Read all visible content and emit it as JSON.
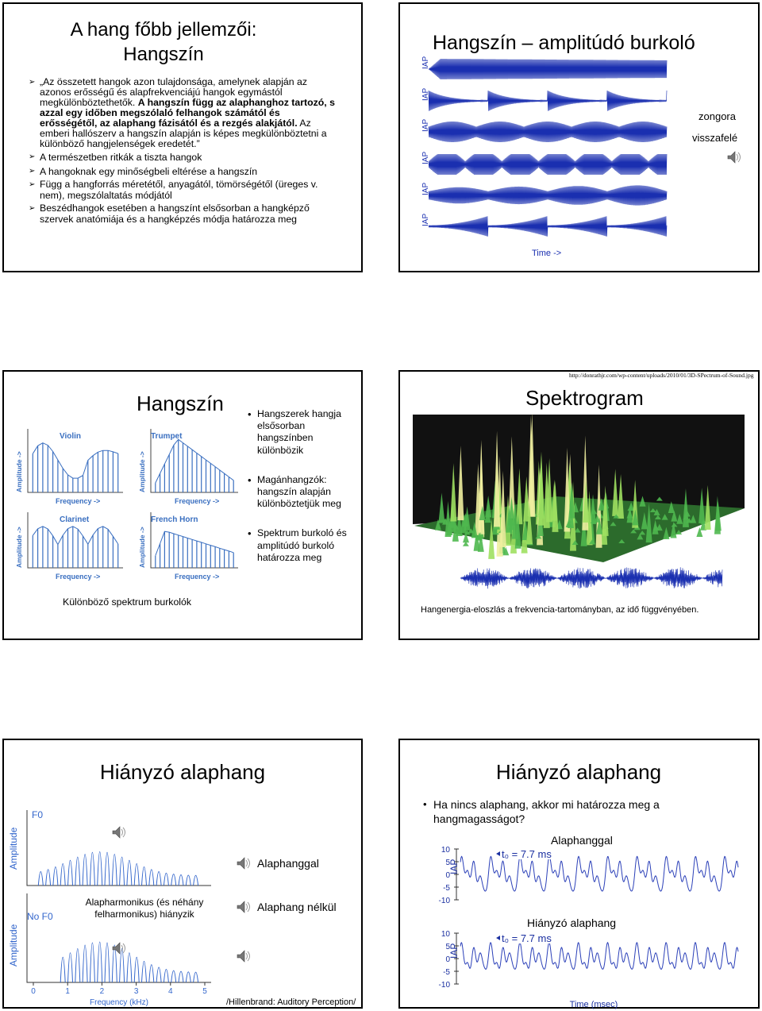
{
  "slides": [
    {
      "title": [
        "A hang főbb jellemzői:",
        "Hangszín"
      ],
      "bullets": [
        {
          "lead": "„Az összetett hangok azon tulajdonsága, amelynek alapján az azonos erősségű és alapfrekvenciájú hangok egymástól megkülönböztethetők. ",
          "bold": "A hangszín függ az alaphanghoz tartozó, s azzal egy időben megszólaló felhangok számától és erősségétől, az alaphang fázisától és a rezgés alakjától.",
          "tail": " Az emberi hallószerv a hangszín alapján is képes megkülönböztetni a különböző hangjelenségek eredetét.”"
        },
        "A természetben ritkák a tiszta hangok",
        "A hangoknak egy minőségbeli eltérése a hangszín",
        "Függ a hangforrás méretétől, anyagától, tömörségétől (üreges v. nem), megszólaltatás módjától",
        "Beszédhangok esetében a hangszínt elsősorban a hangképző szervek anatómiája és a hangképzés módja határozza meg"
      ]
    },
    {
      "title": "Hangszín – amplitúdó burkoló",
      "notes": [
        "zongora",
        "visszafelé"
      ],
      "figure": {
        "y_label": "IAP",
        "x_label": "Time ->"
      }
    },
    {
      "title": "Hangszín",
      "bullets": [
        "Hangszerek hangja elsősorban hangszínben különbözik",
        "Magánhangzók: hangszín alapján különböztetjük meg",
        "Spektrum burkoló és amplitúdó burkoló határozza meg"
      ],
      "figure": {
        "instruments": [
          "Violin",
          "Trumpet",
          "Clarinet",
          "French Horn"
        ],
        "y_label": "Amplitude ->",
        "x_label": "Frequency ->"
      },
      "caption": "Különböző spektrum burkolók"
    },
    {
      "source": "http://donrathjr.com/wp-content/uploads/2010/01/3D-SPectrum-of-Sound.jpg",
      "title": "Spektrogram",
      "caption": "Hangenergia-eloszlás a frekvencia-tartományban, az idő függvényében."
    },
    {
      "title": "Hiányzó alaphang",
      "figure": {
        "panels": [
          "F0",
          "No F0"
        ],
        "y_label": "Amplitude",
        "x_label": "Frequency (kHz)",
        "xticks": [
          0,
          1,
          2,
          3,
          4,
          5
        ]
      },
      "annotation": [
        "Alapharmonikus (és néhány",
        "felharmonikus) hiányzik"
      ],
      "sounds": [
        "Alaphanggal",
        "Alaphang nélkül"
      ],
      "credit": "/Hillenbrand: Auditory Perception/"
    },
    {
      "title": "Hiányzó alaphang",
      "bullets": [
        "Ha nincs alaphang, akkor mi határozza meg a hangmagasságot?"
      ],
      "panels": [
        "Alaphanggal",
        "Hiányzó alaphang"
      ],
      "figure": {
        "period": "t₀ = 7.7 ms",
        "y_label": "IAP",
        "yticks": [
          10,
          5,
          0,
          -5,
          -10
        ],
        "x_label": "Time (msec)"
      }
    }
  ]
}
